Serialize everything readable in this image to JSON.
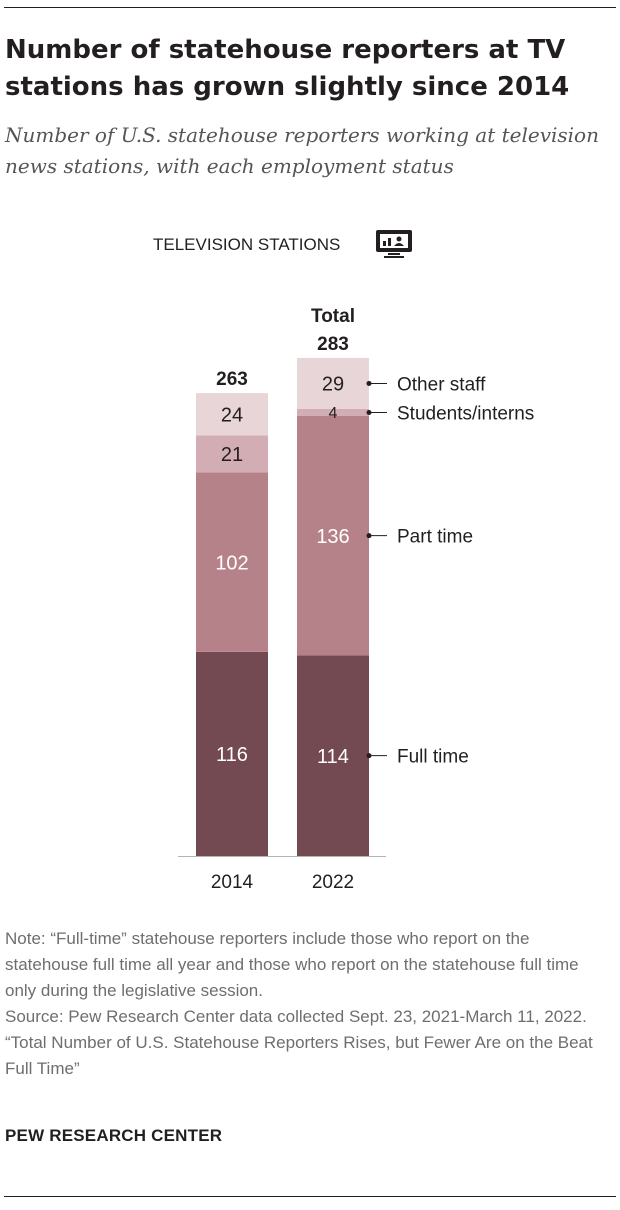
{
  "title": "Number of statehouse reporters at TV stations has grown slightly since 2014",
  "subtitle": "Number of U.S. statehouse reporters working at television news stations, with each employment status",
  "chart_data": {
    "type": "bar",
    "stacked": true,
    "panel_label": "TELEVISION STATIONS",
    "panel_icon": "tv-screen-icon",
    "categories": [
      "2014",
      "2022"
    ],
    "total_label": "Total",
    "totals": [
      263,
      283
    ],
    "series": [
      {
        "name": "Full time",
        "values": [
          116,
          114
        ],
        "color": "#734a52",
        "text_color": "#ffffff"
      },
      {
        "name": "Part time",
        "values": [
          102,
          136
        ],
        "color": "#b5828a",
        "text_color": "#ffffff"
      },
      {
        "name": "Students/interns",
        "values": [
          21,
          4
        ],
        "color": "#d2adb3",
        "text_color": "#231f20"
      },
      {
        "name": "Other staff",
        "values": [
          24,
          29
        ],
        "color": "#e8d5d8",
        "text_color": "#231f20"
      }
    ],
    "legend_placement": "right (direct labels)",
    "grid": false
  },
  "note": {
    "note": "Note: “Full-time” statehouse reporters include those who report on the statehouse full time all year and those who report on the statehouse full time only during the legislative session.",
    "source": "Source: Pew Research Center data collected Sept. 23, 2021-March 11, 2022.",
    "report": "“Total Number of U.S. Statehouse Reporters Rises, but Fewer Are on the Beat Full Time”"
  },
  "brand": "PEW RESEARCH CENTER"
}
